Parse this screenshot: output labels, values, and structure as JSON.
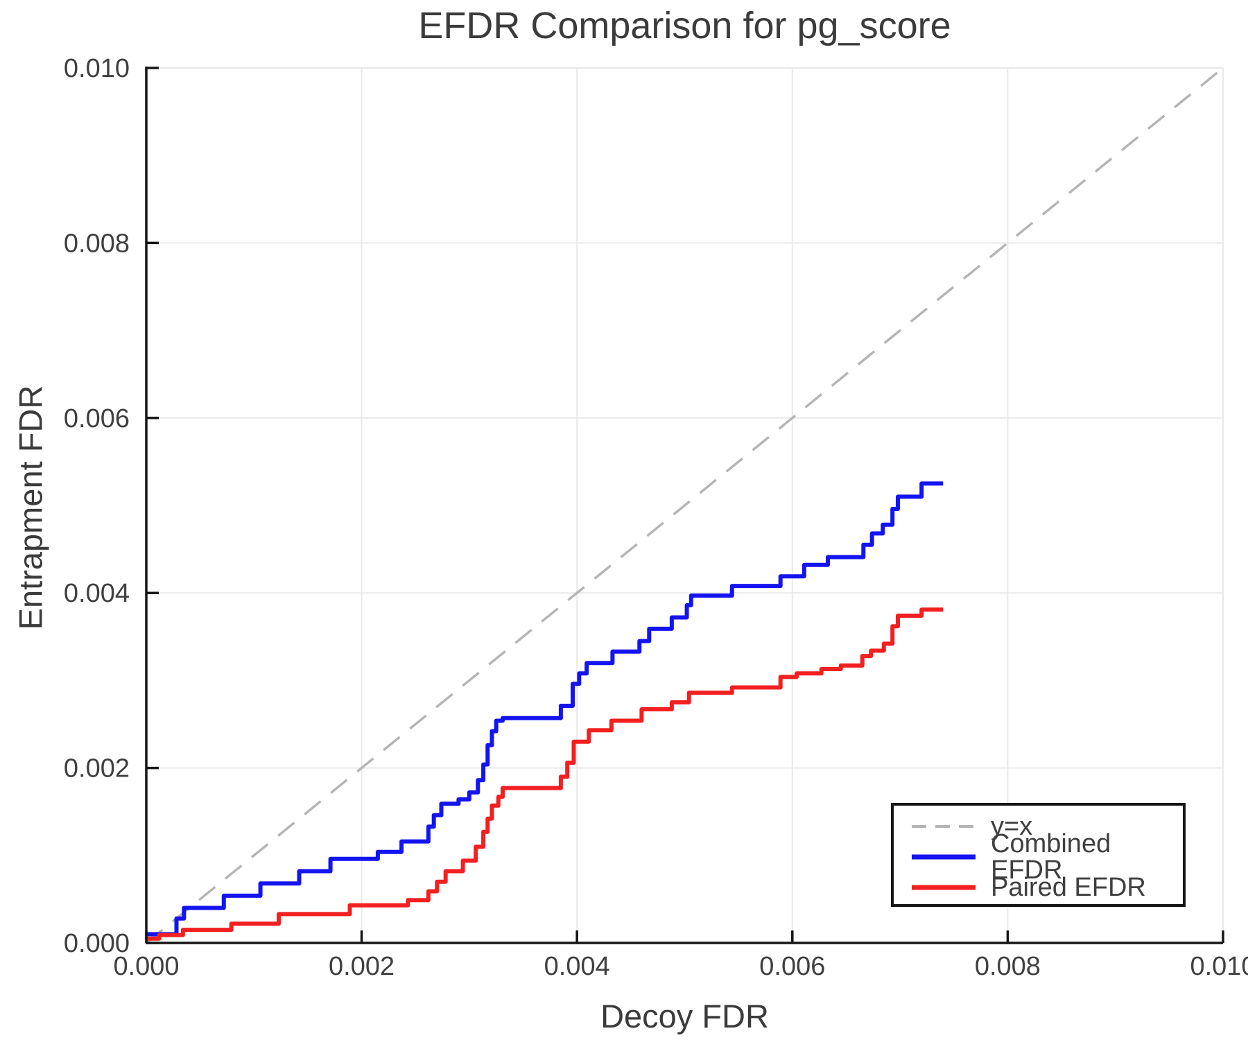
{
  "title": "EFDR Comparison for pg_score",
  "axes": {
    "xlabel": "Decoy FDR",
    "ylabel": "Entrapment FDR"
  },
  "legend": {
    "items": [
      "y=x",
      "Combined EFDR",
      "Paired EFDR"
    ]
  },
  "chart_data": {
    "type": "line",
    "title": "EFDR Comparison for pg_score",
    "xlabel": "Decoy FDR",
    "ylabel": "Entrapment FDR",
    "xlim": [
      0,
      0.01
    ],
    "ylim": [
      0,
      0.01
    ],
    "grid": true,
    "grid_color": "#e9e9e9",
    "legend_position": "lower right",
    "xticks": [
      0,
      0.002,
      0.004,
      0.006,
      0.008,
      0.01
    ],
    "yticks": [
      0,
      0.002,
      0.004,
      0.006,
      0.008,
      0.01
    ],
    "xtick_labels": [
      "0.000",
      "0.002",
      "0.004",
      "0.006",
      "0.008",
      "0.010"
    ],
    "ytick_labels": [
      "0.000",
      "0.002",
      "0.004",
      "0.006",
      "0.008",
      "0.010"
    ],
    "series": [
      {
        "name": "y=x",
        "color": "#b5b5b5",
        "style": "dashed",
        "step": false,
        "width": 3.5,
        "points": [
          [
            0,
            0
          ],
          [
            0.01,
            0.01
          ]
        ]
      },
      {
        "name": "Combined EFDR",
        "color": "#1414f0",
        "style": "solid",
        "step": true,
        "width": 6,
        "points": [
          [
            0.0,
            0.0001
          ],
          [
            0.00028,
            0.00028
          ],
          [
            0.00035,
            0.0004
          ],
          [
            0.00072,
            0.00054
          ],
          [
            0.00106,
            0.00068
          ],
          [
            0.00142,
            0.00082
          ],
          [
            0.00171,
            0.00096
          ],
          [
            0.00215,
            0.00104
          ],
          [
            0.00237,
            0.00116
          ],
          [
            0.00262,
            0.00133
          ],
          [
            0.00267,
            0.00146
          ],
          [
            0.00274,
            0.00159
          ],
          [
            0.0029,
            0.00164
          ],
          [
            0.003,
            0.00172
          ],
          [
            0.00308,
            0.00186
          ],
          [
            0.00313,
            0.00204
          ],
          [
            0.00317,
            0.00226
          ],
          [
            0.00321,
            0.00242
          ],
          [
            0.00325,
            0.00254
          ],
          [
            0.00331,
            0.00257
          ],
          [
            0.00385,
            0.00271
          ],
          [
            0.00396,
            0.00296
          ],
          [
            0.00402,
            0.00308
          ],
          [
            0.00409,
            0.0032
          ],
          [
            0.00433,
            0.00333
          ],
          [
            0.00458,
            0.00345
          ],
          [
            0.00467,
            0.00359
          ],
          [
            0.00488,
            0.00372
          ],
          [
            0.00502,
            0.00386
          ],
          [
            0.00506,
            0.00397
          ],
          [
            0.00544,
            0.00408
          ],
          [
            0.00589,
            0.00419
          ],
          [
            0.00611,
            0.00432
          ],
          [
            0.00633,
            0.00441
          ],
          [
            0.00666,
            0.00455
          ],
          [
            0.00674,
            0.00468
          ],
          [
            0.00684,
            0.00478
          ],
          [
            0.00693,
            0.00496
          ],
          [
            0.00698,
            0.0051
          ],
          [
            0.0072,
            0.00525
          ],
          [
            0.0074,
            0.00525
          ]
        ]
      },
      {
        "name": "Paired EFDR",
        "color": "#f22020",
        "style": "solid",
        "step": true,
        "width": 6,
        "points": [
          [
            0.0,
            5e-05
          ],
          [
            0.00012,
            9e-05
          ],
          [
            0.00034,
            0.00015
          ],
          [
            0.00079,
            0.00022
          ],
          [
            0.00123,
            0.00033
          ],
          [
            0.00189,
            0.00043
          ],
          [
            0.00243,
            0.00049
          ],
          [
            0.00262,
            0.00059
          ],
          [
            0.0027,
            0.0007
          ],
          [
            0.00278,
            0.00082
          ],
          [
            0.00294,
            0.00094
          ],
          [
            0.00306,
            0.0011
          ],
          [
            0.00313,
            0.00127
          ],
          [
            0.00317,
            0.00142
          ],
          [
            0.00321,
            0.00157
          ],
          [
            0.00327,
            0.00167
          ],
          [
            0.00331,
            0.00177
          ],
          [
            0.00385,
            0.0019
          ],
          [
            0.00391,
            0.00206
          ],
          [
            0.00397,
            0.0023
          ],
          [
            0.00411,
            0.00243
          ],
          [
            0.00432,
            0.00254
          ],
          [
            0.0046,
            0.00267
          ],
          [
            0.00488,
            0.00275
          ],
          [
            0.00504,
            0.00286
          ],
          [
            0.00544,
            0.00292
          ],
          [
            0.00589,
            0.00304
          ],
          [
            0.00604,
            0.00308
          ],
          [
            0.00627,
            0.00313
          ],
          [
            0.00645,
            0.00317
          ],
          [
            0.00665,
            0.00328
          ],
          [
            0.00673,
            0.00334
          ],
          [
            0.00685,
            0.00342
          ],
          [
            0.00693,
            0.00362
          ],
          [
            0.00698,
            0.00374
          ],
          [
            0.0072,
            0.00381
          ],
          [
            0.0074,
            0.00381
          ]
        ]
      }
    ]
  }
}
